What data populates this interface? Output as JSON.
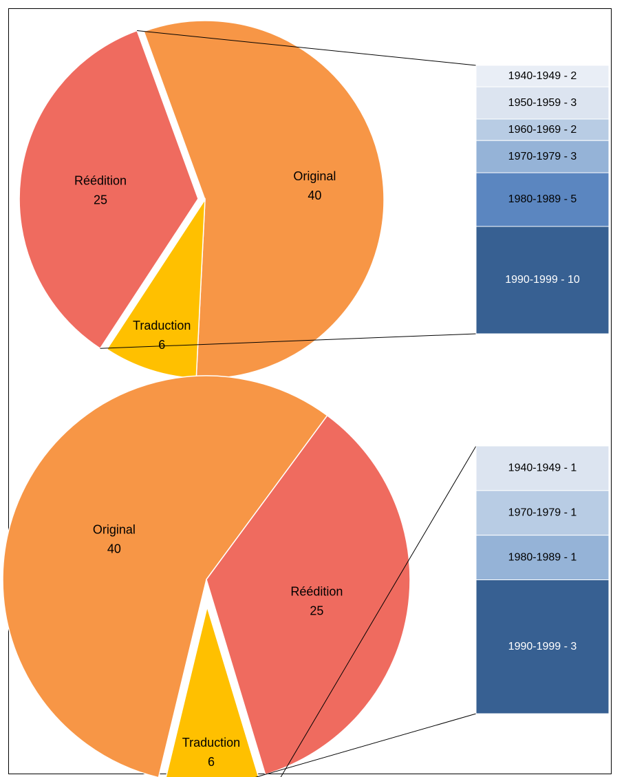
{
  "colors": {
    "Original": "#F79646",
    "Traduction": "#FFC000",
    "Réédition": "#EF6B5F"
  },
  "chart_data": [
    {
      "type": "pie",
      "variant": "bar-of-pie",
      "slices": [
        {
          "label": "Original",
          "value": 40
        },
        {
          "label": "Traduction",
          "value": 6
        },
        {
          "label": "Réédition",
          "value": 25
        }
      ],
      "exploded": "Réédition",
      "breakdown": [
        {
          "label": "1940-1949 - 2",
          "value": 2,
          "color": "#E9EEF6",
          "text_color": "#000000"
        },
        {
          "label": "1950-1959 - 3",
          "value": 3,
          "color": "#DCE4F0",
          "text_color": "#000000"
        },
        {
          "label": "1960-1969 - 2",
          "value": 2,
          "color": "#B8CCE4",
          "text_color": "#000000"
        },
        {
          "label": "1970-1979 - 3",
          "value": 3,
          "color": "#95B3D7",
          "text_color": "#000000"
        },
        {
          "label": "1980-1989 - 5",
          "value": 5,
          "color": "#5B86C0",
          "text_color": "#000000"
        },
        {
          "label": "1990-1999 - 10",
          "value": 10,
          "color": "#376092",
          "text_color": "#FFFFFF"
        }
      ]
    },
    {
      "type": "pie",
      "variant": "bar-of-pie",
      "slices": [
        {
          "label": "Original",
          "value": 40
        },
        {
          "label": "Réédition",
          "value": 25
        },
        {
          "label": "Traduction",
          "value": 6
        }
      ],
      "exploded": "Traduction",
      "breakdown": [
        {
          "label": "1940-1949 - 1",
          "value": 1,
          "color": "#DCE4F0",
          "text_color": "#000000"
        },
        {
          "label": "1970-1979 - 1",
          "value": 1,
          "color": "#B8CCE4",
          "text_color": "#000000"
        },
        {
          "label": "1980-1989 - 1",
          "value": 1,
          "color": "#95B3D7",
          "text_color": "#000000"
        },
        {
          "label": "1990-1999 - 3",
          "value": 3,
          "color": "#376092",
          "text_color": "#FFFFFF"
        }
      ]
    }
  ]
}
